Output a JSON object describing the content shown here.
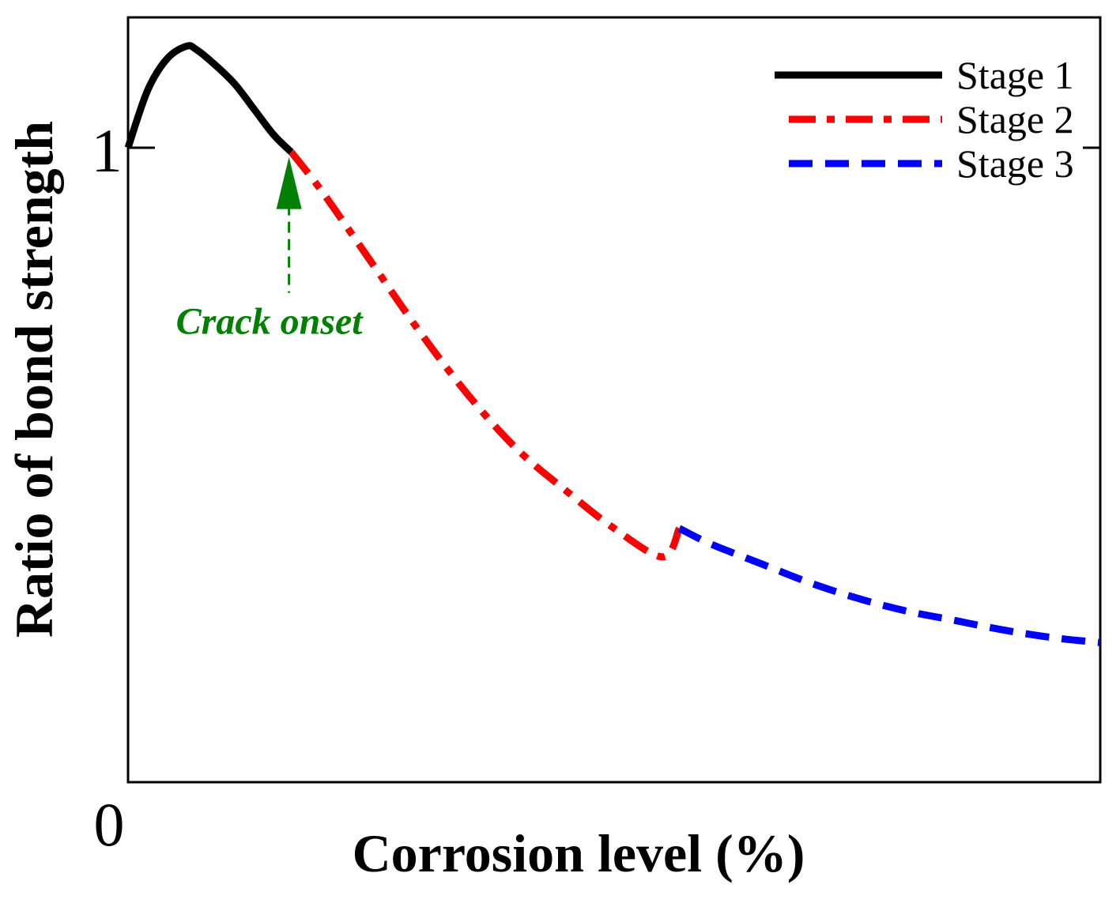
{
  "chart_data": {
    "type": "line",
    "title": "",
    "xlabel": "Corrosion level (%)",
    "ylabel": "Ratio of bond strength",
    "xlim": [
      0,
      1
    ],
    "ylim": [
      0,
      1.25
    ],
    "grid": false,
    "legend_position": "top-right",
    "y_ticks": [
      {
        "value": 0,
        "label": "0"
      },
      {
        "value": 1,
        "label": "1"
      }
    ],
    "series": [
      {
        "name": "Stage 1",
        "color": "#000000",
        "style": "solid",
        "x": [
          0,
          0.02,
          0.04,
          0.06,
          0.07,
          0.09,
          0.11,
          0.13,
          0.15,
          0.168
        ],
        "y": [
          1.0,
          1.09,
          1.14,
          1.16,
          1.155,
          1.13,
          1.1,
          1.06,
          1.02,
          0.993
        ]
      },
      {
        "name": "Stage 2",
        "color": "#ff0000",
        "style": "dash-dot",
        "x": [
          0.168,
          0.2,
          0.25,
          0.3,
          0.35,
          0.4,
          0.45,
          0.5,
          0.55,
          0.567
        ],
        "y": [
          0.993,
          0.93,
          0.82,
          0.71,
          0.61,
          0.525,
          0.46,
          0.4,
          0.355,
          0.4
        ]
      },
      {
        "name": "Stage 3",
        "color": "#0000ff",
        "style": "dashed",
        "x": [
          0.567,
          0.6,
          0.65,
          0.7,
          0.75,
          0.8,
          0.85,
          0.9,
          0.95,
          1.0
        ],
        "y": [
          0.4,
          0.375,
          0.345,
          0.315,
          0.29,
          0.27,
          0.255,
          0.24,
          0.228,
          0.22
        ]
      }
    ],
    "annotations": [
      {
        "text": "Crack onset",
        "x": 0.168,
        "y": 0.993,
        "color": "#008000"
      }
    ]
  }
}
